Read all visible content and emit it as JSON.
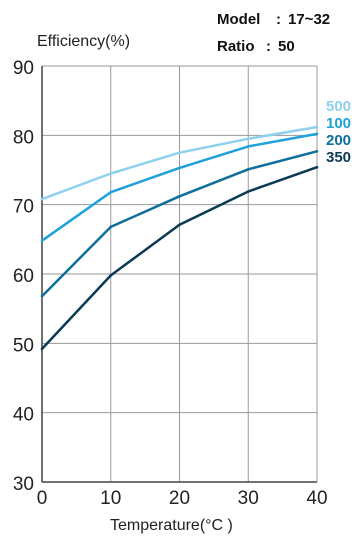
{
  "header": {
    "model_label": "Model",
    "model_value": "17~32",
    "ratio_label": "Ratio",
    "ratio_value": "50"
  },
  "chart_data": {
    "type": "line",
    "title": "",
    "ylabel": "Efficiency(%)",
    "xlabel": "Temperature(°C )",
    "x": [
      0,
      10,
      20,
      30,
      40
    ],
    "xticks": [
      "0",
      "10",
      "20",
      "30",
      "40"
    ],
    "yticks": [
      "30",
      "40",
      "50",
      "60",
      "70",
      "80",
      "90"
    ],
    "xlim": [
      0,
      40
    ],
    "ylim": [
      30,
      90
    ],
    "grid": true,
    "legend": "right",
    "series": [
      {
        "name": "500",
        "color": "#8fd0ef",
        "values": [
          70.8,
          74.5,
          77.5,
          79.5,
          81.2
        ]
      },
      {
        "name": "100",
        "color": "#1fa2dc",
        "values": [
          64.8,
          71.8,
          75.3,
          78.4,
          80.2
        ]
      },
      {
        "name": "200",
        "color": "#0d6f9c",
        "values": [
          56.8,
          66.8,
          71.2,
          75.1,
          77.7
        ]
      },
      {
        "name": "350",
        "color": "#0b3a55",
        "values": [
          49.2,
          59.8,
          67.1,
          71.9,
          75.4
        ]
      }
    ]
  }
}
